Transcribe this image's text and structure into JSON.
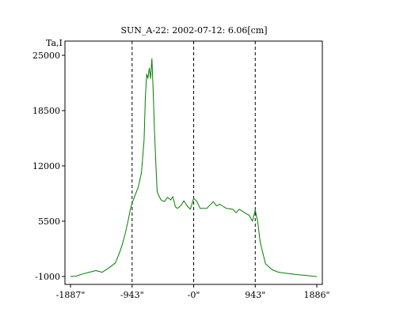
{
  "chart_data": {
    "type": "line",
    "title": "SUN_A-22: 2002-07-12: 6.06[cm]",
    "ylabel": "Ta,I",
    "xlabel": "",
    "xlim": [
      -1887,
      1886
    ],
    "ylim": [
      -1000,
      25000
    ],
    "grid": false,
    "x_ticks": [
      {
        "value": -1887,
        "label": "-1887\""
      },
      {
        "value": -943,
        "label": "-943\""
      },
      {
        "value": 0,
        "label": "-0\""
      },
      {
        "value": 943,
        "label": "943\""
      },
      {
        "value": 1886,
        "label": "1886\""
      }
    ],
    "y_ticks": [
      {
        "value": -1000,
        "label": "-1000"
      },
      {
        "value": 5500,
        "label": "5500"
      },
      {
        "value": 12000,
        "label": "12000"
      },
      {
        "value": 18500,
        "label": "18500"
      },
      {
        "value": 25000,
        "label": "25000"
      }
    ],
    "vlines": [
      -943,
      0,
      943
    ],
    "series": [
      {
        "color": "#008000",
        "x": [
          -1887,
          -1800,
          -1700,
          -1600,
          -1500,
          -1400,
          -1300,
          -1200,
          -1150,
          -1100,
          -1050,
          -1000,
          -970,
          -943,
          -900,
          -850,
          -800,
          -760,
          -740,
          -720,
          -700,
          -680,
          -660,
          -640,
          -620,
          -600,
          -580,
          -560,
          -540,
          -500,
          -450,
          -400,
          -350,
          -320,
          -280,
          -250,
          -200,
          -150,
          -100,
          -50,
          0,
          50,
          100,
          200,
          300,
          350,
          400,
          500,
          600,
          650,
          700,
          800,
          850,
          900,
          943,
          980,
          1020,
          1100,
          1200,
          1300,
          1400,
          1500,
          1600,
          1700,
          1800,
          1886
        ],
        "y": [
          -1000,
          -950,
          -700,
          -500,
          -300,
          -500,
          0,
          600,
          1500,
          2600,
          4000,
          5700,
          6900,
          7600,
          8500,
          9500,
          11200,
          15000,
          20000,
          22800,
          22300,
          23500,
          22300,
          24600,
          20800,
          16000,
          12500,
          9000,
          8600,
          8000,
          7800,
          8300,
          8000,
          8400,
          7200,
          7000,
          7300,
          7900,
          7300,
          6900,
          8200,
          7800,
          7000,
          7000,
          7800,
          7300,
          7500,
          7000,
          6900,
          6500,
          6900,
          6400,
          6200,
          5500,
          6800,
          5500,
          3000,
          500,
          -200,
          -500,
          -600,
          -700,
          -800,
          -850,
          -950,
          -1000
        ]
      }
    ]
  }
}
